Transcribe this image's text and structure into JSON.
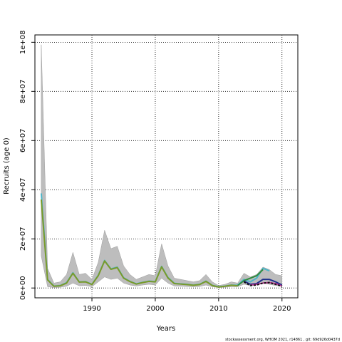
{
  "chart_data": {
    "type": "line",
    "xlabel": "Years",
    "ylabel": "Recruits (age 0)",
    "footer": "stockassessment.org, WHOM 2021, r14861 , git: 69d926d0437d",
    "xlim": [
      1981,
      2022.5
    ],
    "ylim": [
      -4000000,
      103000000
    ],
    "grid": true,
    "x_ticks": [
      1990,
      2000,
      2010,
      2020
    ],
    "x_tick_labels": [
      "1990",
      "2000",
      "2010",
      "2020"
    ],
    "y_ticks": [
      0,
      20000000,
      40000000,
      60000000,
      80000000,
      100000000
    ],
    "y_tick_labels": [
      "0e+00",
      "2e+07",
      "4e+07",
      "6e+07",
      "8e+07",
      "1e+08"
    ],
    "confidence_band": {
      "x": [
        1982,
        1983,
        1984,
        1985,
        1986,
        1987,
        1988,
        1989,
        1990,
        1991,
        1992,
        1993,
        1994,
        1995,
        1996,
        1997,
        1998,
        1999,
        2000,
        2001,
        2002,
        2003,
        2004,
        2005,
        2006,
        2007,
        2008,
        2009,
        2010,
        2011,
        2012,
        2013,
        2014,
        2015,
        2016,
        2017,
        2018,
        2019,
        2020
      ],
      "upper": [
        99000000,
        8000000,
        2000000,
        2500000,
        5500000,
        14500000,
        5500000,
        6000000,
        3500000,
        10500000,
        23500000,
        16000000,
        17000000,
        9000000,
        5500000,
        3500000,
        4500000,
        5500000,
        5000000,
        18000000,
        9000000,
        4000000,
        3500000,
        3000000,
        2500000,
        3000000,
        5500000,
        2500000,
        1000000,
        1500000,
        2500000,
        2000000,
        6000000,
        4500000,
        5500000,
        8500000,
        7500000,
        5500000,
        5000000
      ],
      "lower": [
        13000000,
        500000,
        200000,
        300000,
        700000,
        2000000,
        900000,
        1000000,
        500000,
        2500000,
        4500000,
        3500000,
        4000000,
        2000000,
        1200000,
        800000,
        1200000,
        1500000,
        1200000,
        4000000,
        2000000,
        800000,
        700000,
        600000,
        500000,
        600000,
        1200000,
        500000,
        200000,
        300000,
        500000,
        500000,
        1500000,
        1000000,
        1200000,
        2000000,
        1500000,
        1000000,
        800000
      ]
    },
    "series": [
      {
        "color": "#4fb6c8",
        "x": [
          1982,
          1983,
          1984,
          1985,
          1986,
          1987,
          1988,
          1989,
          1990,
          1991,
          1992,
          1993,
          1994,
          1995,
          1996,
          1997,
          1998,
          1999,
          2000,
          2001,
          2002,
          2003,
          2004,
          2005,
          2006,
          2007,
          2008,
          2009,
          2010,
          2011,
          2012,
          2013,
          2014,
          2015,
          2016,
          2017,
          2018
        ],
        "values": [
          38500000,
          3500000,
          800000,
          1000000,
          2200000,
          6200000,
          2500000,
          2600000,
          1500000,
          5200000,
          11200000,
          7800000,
          8500000,
          4200000,
          2700000,
          1700000,
          2300000,
          2800000,
          2600000,
          8800000,
          4300000,
          1900000,
          1700000,
          1500000,
          1200000,
          1500000,
          2800000,
          1100000,
          500000,
          800000,
          1200000,
          1100000,
          3500000,
          2500000,
          4000000,
          8000000,
          7000000
        ]
      },
      {
        "color": "#2e8b3e",
        "x": [
          2013,
          2014,
          2015,
          2016,
          2017
        ],
        "values": [
          1000000,
          3000000,
          4000000,
          5000000,
          7500000
        ]
      },
      {
        "color": "#1e2f8c",
        "x": [
          2014,
          2015,
          2016,
          2017,
          2018,
          2019,
          2020
        ],
        "values": [
          2800000,
          1500000,
          1800000,
          3500000,
          3500000,
          2500000,
          1200000
        ]
      },
      {
        "color": "#c0389a",
        "x": [
          2015,
          2016,
          2017,
          2018,
          2019,
          2020
        ],
        "values": [
          1200000,
          1500000,
          2000000,
          2200000,
          1800000,
          800000
        ]
      },
      {
        "color": "#111111",
        "dashed": true,
        "x": [
          2014,
          2015,
          2016,
          2017,
          2018,
          2019,
          2020
        ],
        "values": [
          2500000,
          1000000,
          1200000,
          2000000,
          2200000,
          1500000,
          700000
        ]
      },
      {
        "color": "#7a9a2a",
        "x": [
          1982,
          1983,
          1984,
          1985,
          1986,
          1987,
          1988,
          1989,
          1990,
          1991,
          1992,
          1993,
          1994,
          1995,
          1996,
          1997,
          1998,
          1999,
          2000,
          2001,
          2002,
          2003,
          2004,
          2005,
          2006,
          2007,
          2008,
          2009,
          2010,
          2011,
          2012,
          2013
        ],
        "values": [
          36000000,
          3300000,
          700000,
          900000,
          2000000,
          6000000,
          2400000,
          2500000,
          1400000,
          5000000,
          11000000,
          7600000,
          8300000,
          4000000,
          2600000,
          1600000,
          2200000,
          2700000,
          2500000,
          8600000,
          4100000,
          1800000,
          1600000,
          1400000,
          1100000,
          1400000,
          2700000,
          1000000,
          400000,
          700000,
          1100000,
          900000
        ]
      }
    ]
  }
}
